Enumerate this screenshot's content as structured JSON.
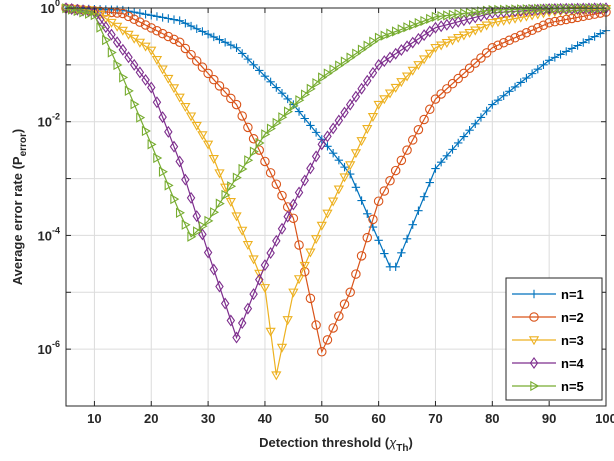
{
  "chart_data": {
    "type": "line",
    "xlabel": "Detection threshold",
    "xlabel_symbol": "χ",
    "xlabel_sub": "Th",
    "ylabel": "Average error rate (P",
    "ylabel_sub": "error",
    "ylabel_close": ")",
    "xlim": [
      5,
      100
    ],
    "ylim": [
      1e-07,
      1
    ],
    "yscale": "log",
    "grid": true,
    "legend_position": "bottom-right",
    "x_ticks": [
      10,
      20,
      30,
      40,
      50,
      60,
      70,
      80,
      90,
      100
    ],
    "y_ticks": [
      {
        "value": 1,
        "base": "10",
        "exp": "0"
      },
      {
        "value": 0.01,
        "base": "10",
        "exp": "-2"
      },
      {
        "value": 0.0001,
        "base": "10",
        "exp": "-4"
      },
      {
        "value": 1e-06,
        "base": "10",
        "exp": "-6"
      }
    ],
    "series": [
      {
        "name": "n=1",
        "color": "#0072BD",
        "marker": "plus",
        "points": [
          [
            5,
            0.99
          ],
          [
            15,
            0.92
          ],
          [
            25,
            0.6
          ],
          [
            35,
            0.2
          ],
          [
            45,
            0.02
          ],
          [
            55,
            0.0012
          ],
          [
            62,
            2.8e-05
          ],
          [
            63,
            2.8e-05
          ],
          [
            70,
            0.0015
          ],
          [
            80,
            0.02
          ],
          [
            90,
            0.12
          ],
          [
            100,
            0.4
          ]
        ]
      },
      {
        "name": "n=2",
        "color": "#D95319",
        "marker": "circle",
        "points": [
          [
            5,
            0.99
          ],
          [
            15,
            0.8
          ],
          [
            25,
            0.25
          ],
          [
            35,
            0.02
          ],
          [
            45,
            0.0002
          ],
          [
            50,
            9e-07
          ],
          [
            55,
            1e-05
          ],
          [
            60,
            0.0004
          ],
          [
            70,
            0.025
          ],
          [
            80,
            0.2
          ],
          [
            90,
            0.55
          ],
          [
            100,
            0.85
          ]
        ]
      },
      {
        "name": "n=3",
        "color": "#EDB120",
        "marker": "triangle-down",
        "points": [
          [
            5,
            0.99
          ],
          [
            10,
            0.9
          ],
          [
            20,
            0.18
          ],
          [
            30,
            0.004
          ],
          [
            40,
            1.2e-05
          ],
          [
            42,
            3.5e-07
          ],
          [
            45,
            1e-05
          ],
          [
            50,
            0.00015
          ],
          [
            60,
            0.02
          ],
          [
            70,
            0.2
          ],
          [
            80,
            0.55
          ],
          [
            90,
            0.85
          ],
          [
            100,
            0.97
          ]
        ]
      },
      {
        "name": "n=4",
        "color": "#7E2F8E",
        "marker": "diamond",
        "points": [
          [
            5,
            0.99
          ],
          [
            10,
            0.85
          ],
          [
            20,
            0.04
          ],
          [
            25,
            0.002
          ],
          [
            30,
            5e-05
          ],
          [
            35,
            1.6e-06
          ],
          [
            40,
            3e-05
          ],
          [
            45,
            0.00035
          ],
          [
            50,
            0.004
          ],
          [
            60,
            0.1
          ],
          [
            70,
            0.45
          ],
          [
            80,
            0.82
          ],
          [
            90,
            0.96
          ],
          [
            100,
            0.99
          ]
        ]
      },
      {
        "name": "n=5",
        "color": "#77AC30",
        "marker": "triangle-right",
        "points": [
          [
            5,
            0.99
          ],
          [
            10,
            0.75
          ],
          [
            15,
            0.06
          ],
          [
            20,
            0.004
          ],
          [
            25,
            0.00025
          ],
          [
            27,
            9.5e-05
          ],
          [
            30,
            0.00018
          ],
          [
            40,
            0.006
          ],
          [
            50,
            0.06
          ],
          [
            60,
            0.3
          ],
          [
            70,
            0.7
          ],
          [
            80,
            0.92
          ],
          [
            90,
            0.98
          ],
          [
            100,
            0.995
          ]
        ]
      }
    ]
  }
}
